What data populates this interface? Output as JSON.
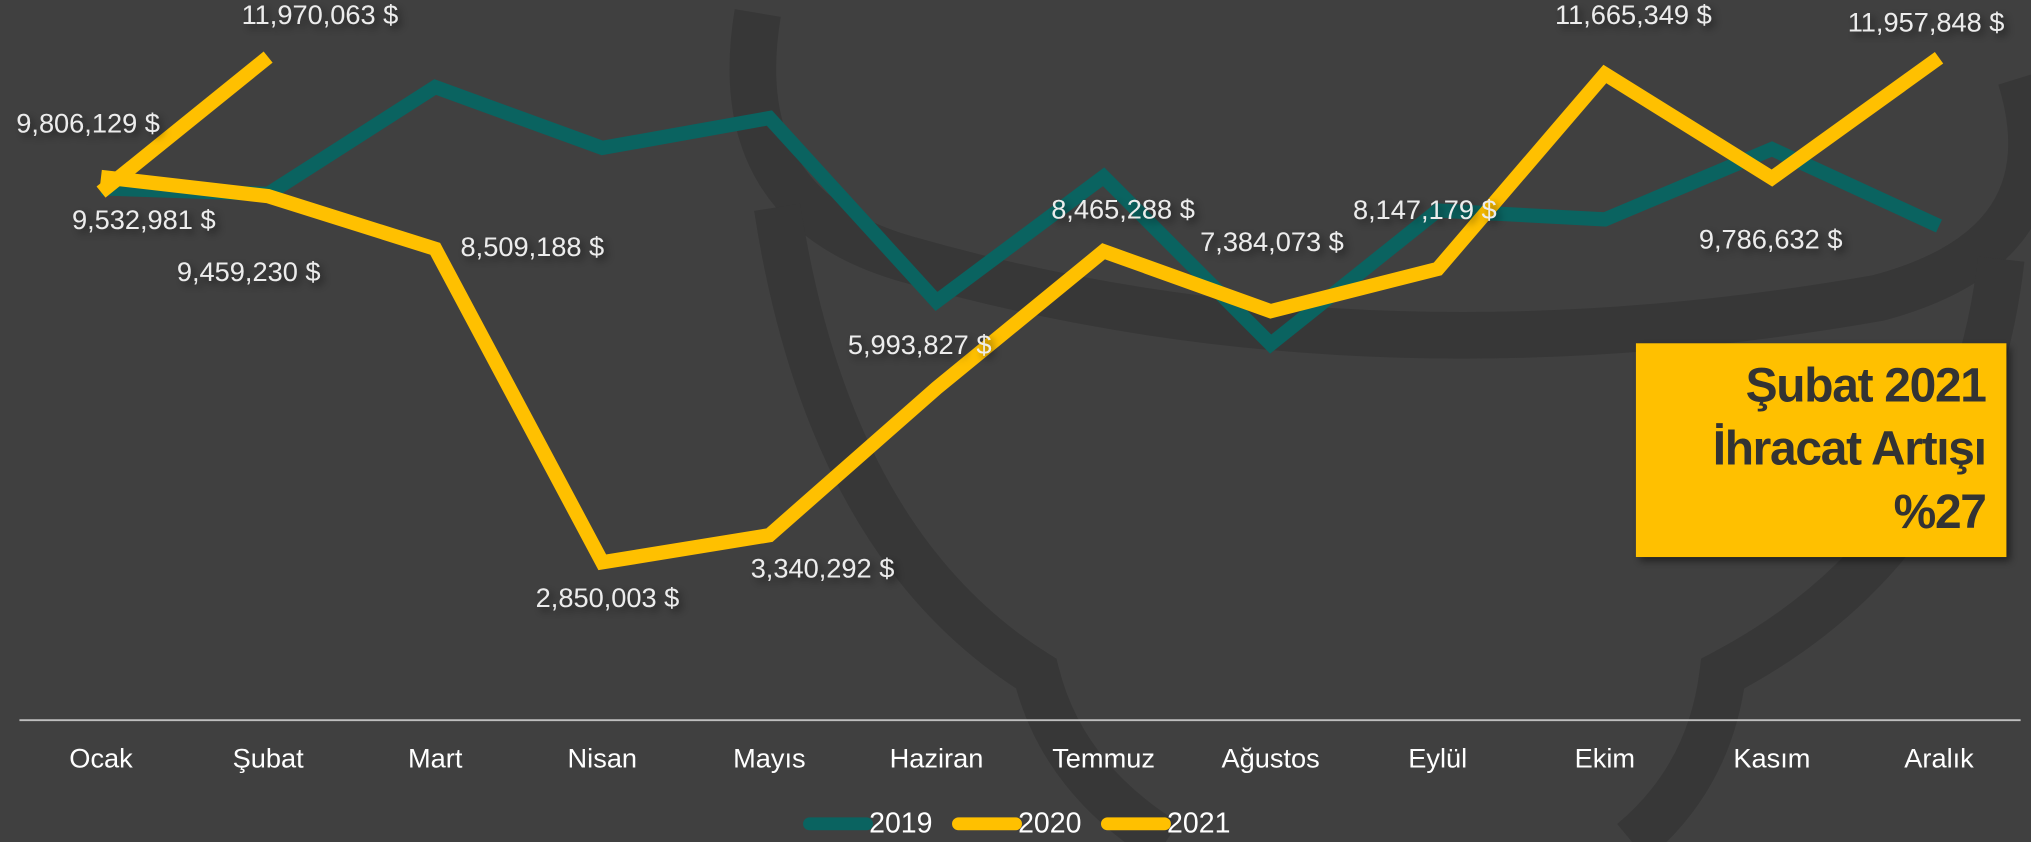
{
  "chart_data": {
    "type": "line",
    "categories": [
      "Ocak",
      "Şubat",
      "Mart",
      "Nisan",
      "Mayıs",
      "Haziran",
      "Temmuz",
      "Ağustos",
      "Eylül",
      "Ekim",
      "Kasım",
      "Aralık"
    ],
    "ylim": [
      0,
      13000000
    ],
    "grid": false,
    "legend": "bottom",
    "series": [
      {
        "name": "2019",
        "color": "#0a6360",
        "values": [
          9600000,
          9500000,
          11430000,
          10330000,
          10870000,
          7560000,
          9810000,
          6790000,
          9200000,
          9040000,
          10310000,
          8920000
        ]
      },
      {
        "name": "2020",
        "color": "#ffc000",
        "values": [
          9806129,
          9459230,
          8509188,
          2850003,
          3340292,
          5993827,
          8465288,
          7384073,
          8147179,
          11665349,
          9786632,
          11957848
        ],
        "value_labels": [
          "9,806,129 $",
          "9,459,230 $",
          "8,509,188 $",
          "2,850,003 $",
          "3,340,292 $",
          "5,993,827 $",
          "8,465,288 $",
          "7,384,073 $",
          "8,147,179 $",
          "11,665,349 $",
          "9,786,632 $",
          "11,957,848 $"
        ]
      },
      {
        "name": "2021",
        "color": "#ffc000",
        "values": [
          9532981,
          11970063,
          null,
          null,
          null,
          null,
          null,
          null,
          null,
          null,
          null,
          null
        ],
        "value_labels": [
          "9,532,981 $",
          "11,970,063 $",
          null,
          null,
          null,
          null,
          null,
          null,
          null,
          null,
          null,
          null
        ]
      }
    ],
    "annotation": {
      "lines": [
        "Şubat 2021",
        "İhracat Artışı",
        "%27"
      ],
      "color": "#ffc000"
    }
  }
}
